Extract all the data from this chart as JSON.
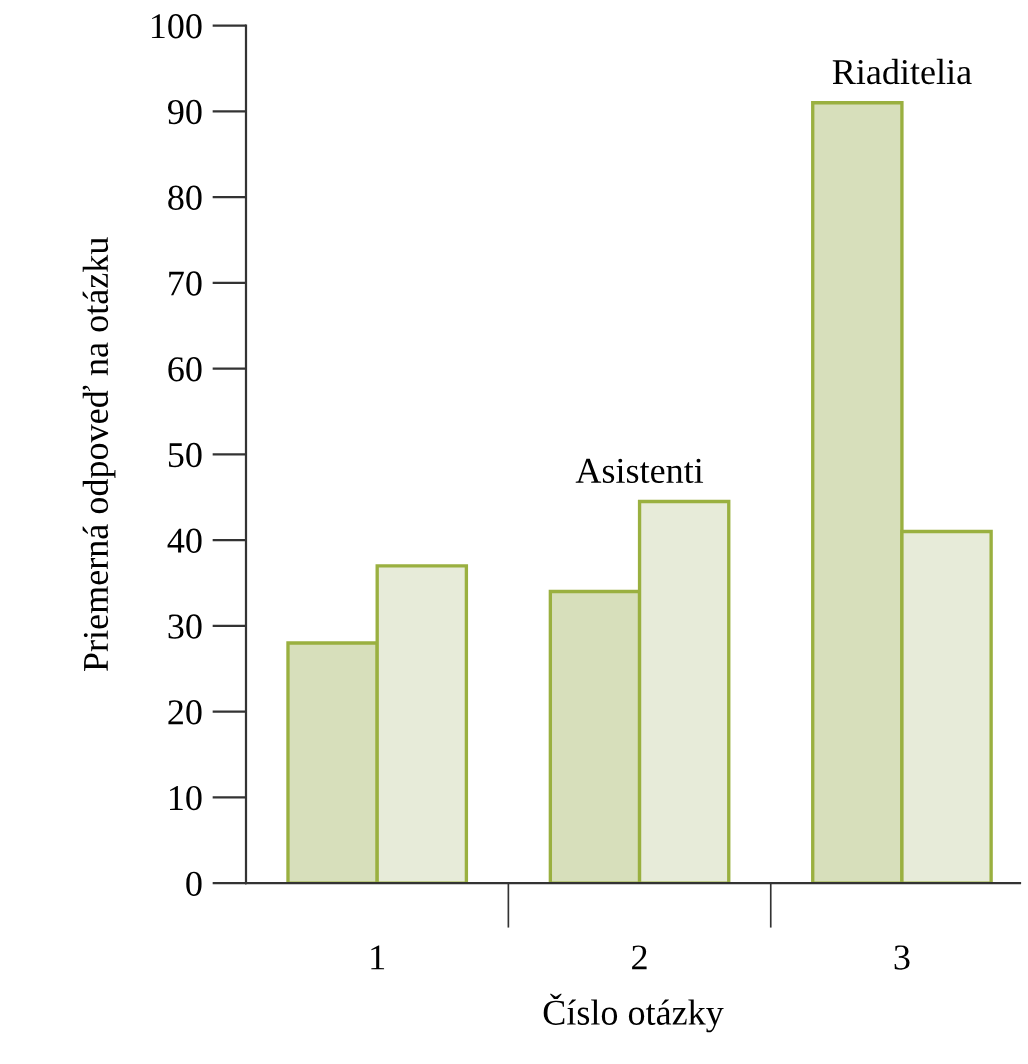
{
  "chart_data": {
    "type": "bar",
    "xlabel": "Číslo otázky",
    "ylabel": "Priemerná odpoveď na otázku",
    "categories": [
      "1",
      "2",
      "3"
    ],
    "series": [
      {
        "color": "#d7dfbb",
        "values": [
          28,
          34,
          91
        ]
      },
      {
        "color": "#e7ebd9",
        "values": [
          37,
          44.5,
          41
        ]
      }
    ],
    "ylim": [
      0,
      100
    ],
    "yticks": [
      0,
      10,
      20,
      30,
      40,
      50,
      60,
      70,
      80,
      90,
      100
    ],
    "annotations": [
      {
        "text": "Asistenti",
        "x": "2",
        "y": 44.5
      },
      {
        "text": "Riaditelia",
        "x": "3",
        "y": 91
      }
    ],
    "grid": false,
    "legend": false
  }
}
